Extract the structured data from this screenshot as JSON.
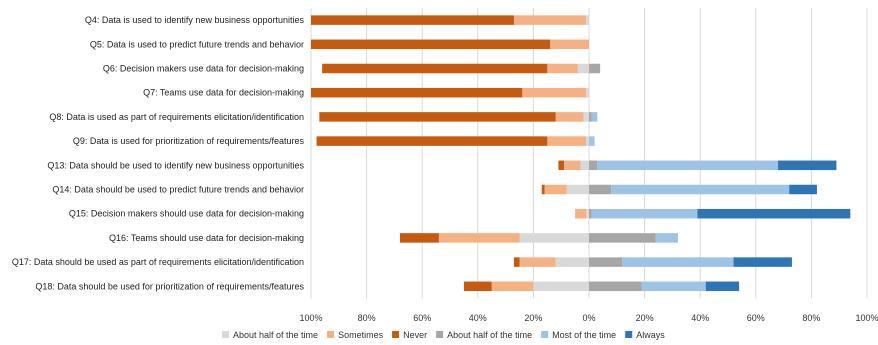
{
  "chart_data": {
    "type": "bar",
    "orientation": "horizontal",
    "stacking": "diverging",
    "title": "",
    "xlabel": "",
    "ylabel": "",
    "xlim": [
      -100,
      100
    ],
    "x_ticks": [
      -100,
      -80,
      -60,
      -40,
      -20,
      0,
      20,
      40,
      60,
      80,
      100
    ],
    "x_tick_labels": [
      "100%",
      "80%",
      "60%",
      "40%",
      "20%",
      "0%",
      "20%",
      "40%",
      "60%",
      "80%",
      "100%"
    ],
    "grid": "vertical",
    "legend_position": "bottom",
    "categories": [
      "Q4: Data is used to identify new business opportunities",
      "Q5: Data is used to predict future trends and behavior",
      "Q6: Decision makers use  data for decision-making",
      "Q7: Teams use  data for  decision-making",
      "Q8: Data is used as part of requirements elicitation/identification",
      "Q9: Data is used for prioritization of requirements/features",
      "Q13: Data should be used to identify new business opportunities",
      "Q14: Data should be used to predict future trends and behavior",
      "Q15: Decision makers should use  data for decision-making",
      "Q16: Teams should use data for decision-making",
      "Q17: Data should be used as part of requirements elicitation/identification",
      "Q18: Data should be used for prioritization of requirements/features"
    ],
    "series": [
      {
        "name": "About half of the time",
        "side": "negative",
        "color": "#d9d9d9",
        "values": [
          1,
          0,
          4,
          1,
          2,
          1,
          3,
          8,
          1,
          25,
          12,
          20
        ]
      },
      {
        "name": "Sometimes",
        "side": "negative",
        "color": "#f4b183",
        "values": [
          26,
          14,
          11,
          23,
          10,
          14,
          6,
          8,
          4,
          29,
          13,
          15
        ]
      },
      {
        "name": "Never",
        "side": "negative",
        "color": "#c55a11",
        "values": [
          73,
          86,
          81,
          76,
          85,
          83,
          2,
          1,
          0,
          14,
          2,
          10
        ]
      },
      {
        "name": "About half of the time",
        "side": "positive",
        "color": "#a6a6a6",
        "values": [
          0,
          0,
          4,
          0,
          1,
          0,
          3,
          8,
          1,
          24,
          12,
          19
        ]
      },
      {
        "name": "Most of the time",
        "side": "positive",
        "color": "#9dc3e6",
        "values": [
          0,
          0,
          0,
          0,
          2,
          2,
          65,
          64,
          38,
          8,
          40,
          23
        ]
      },
      {
        "name": "Always",
        "side": "positive",
        "color": "#2e75b6",
        "values": [
          0,
          0,
          0,
          0,
          0,
          0,
          21,
          10,
          55,
          0,
          21,
          12
        ]
      }
    ]
  }
}
